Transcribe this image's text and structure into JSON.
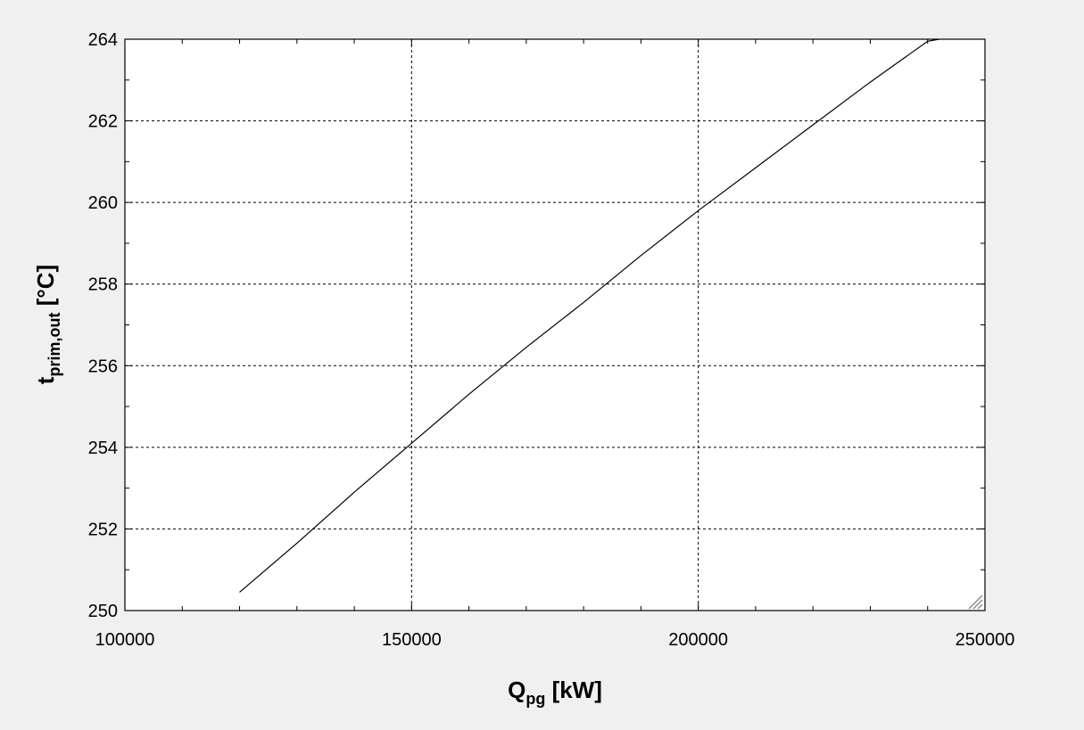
{
  "chart_data": {
    "type": "line",
    "x_label": {
      "main": "Q",
      "sub": "pg",
      "unit": " [kW]"
    },
    "y_label": {
      "main": "t",
      "sub": "prim,out",
      "unit": " [°C]"
    },
    "xlim": [
      100000,
      250000
    ],
    "ylim": [
      250,
      264
    ],
    "x_ticks": [
      100000,
      150000,
      200000,
      250000
    ],
    "x_tick_labels": [
      "100000",
      "150000",
      "200000",
      "250000"
    ],
    "y_ticks": [
      250,
      252,
      254,
      256,
      258,
      260,
      262,
      264
    ],
    "y_tick_labels": [
      "250",
      "252",
      "254",
      "256",
      "258",
      "260",
      "262",
      "264"
    ],
    "grid": true,
    "series": [
      {
        "color": "#000000",
        "x": [
          120000,
          130000,
          140000,
          150000,
          160000,
          170000,
          180000,
          190000,
          200000,
          210000,
          220000,
          230000,
          240000,
          242000
        ],
        "y": [
          250.45,
          251.65,
          252.9,
          254.1,
          255.3,
          256.45,
          257.55,
          258.7,
          259.8,
          260.85,
          261.9,
          262.95,
          263.95,
          264.0
        ]
      }
    ]
  }
}
